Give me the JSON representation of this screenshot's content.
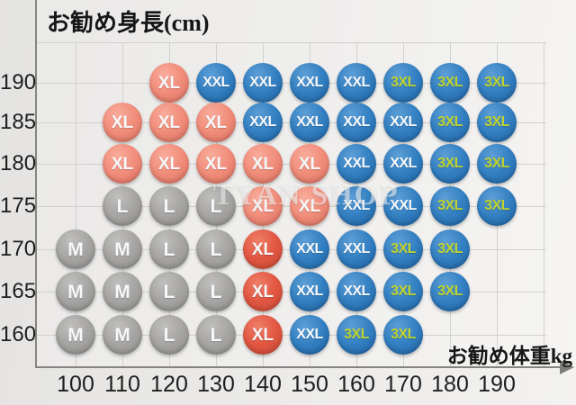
{
  "watermark": "TYAN SHOP",
  "chart_data": {
    "type": "scatter",
    "title": "お勧め身長(cm)",
    "xlabel": "お勧め体重kg",
    "ylabel": "お勧め身長(cm)",
    "x_unit": "kg",
    "y_unit": "cm",
    "x_ticks": [
      100,
      110,
      120,
      130,
      140,
      150,
      160,
      170,
      180,
      190
    ],
    "y_ticks": [
      190,
      185,
      180,
      175,
      170,
      165,
      160
    ],
    "grid": "on",
    "palette": {
      "gray": "#A6A5A3",
      "salmon": "#F18D7B",
      "red": "#E25742",
      "blue": "#3380C2",
      "label_default": "#F6F8FA",
      "label_3xl": "#BFD22F",
      "axis": "#85847F",
      "gridline": "#D2D1CE"
    },
    "rows": [
      {
        "height": 190,
        "points": [
          {
            "w": 120,
            "s": "XL",
            "c": "salmon"
          },
          {
            "w": 130,
            "s": "XXL",
            "c": "blue"
          },
          {
            "w": 140,
            "s": "XXL",
            "c": "blue"
          },
          {
            "w": 150,
            "s": "XXL",
            "c": "blue"
          },
          {
            "w": 160,
            "s": "XXL",
            "c": "blue"
          },
          {
            "w": 170,
            "s": "3XL",
            "c": "blue"
          },
          {
            "w": 180,
            "s": "3XL",
            "c": "blue"
          },
          {
            "w": 190,
            "s": "3XL",
            "c": "blue"
          }
        ]
      },
      {
        "height": 185,
        "points": [
          {
            "w": 110,
            "s": "XL",
            "c": "salmon"
          },
          {
            "w": 120,
            "s": "XL",
            "c": "salmon"
          },
          {
            "w": 130,
            "s": "XL",
            "c": "salmon"
          },
          {
            "w": 140,
            "s": "XXL",
            "c": "blue"
          },
          {
            "w": 150,
            "s": "XXL",
            "c": "blue"
          },
          {
            "w": 160,
            "s": "XXL",
            "c": "blue"
          },
          {
            "w": 170,
            "s": "XXL",
            "c": "blue"
          },
          {
            "w": 180,
            "s": "3XL",
            "c": "blue"
          },
          {
            "w": 190,
            "s": "3XL",
            "c": "blue"
          }
        ]
      },
      {
        "height": 180,
        "points": [
          {
            "w": 110,
            "s": "XL",
            "c": "salmon"
          },
          {
            "w": 120,
            "s": "XL",
            "c": "salmon"
          },
          {
            "w": 130,
            "s": "XL",
            "c": "salmon"
          },
          {
            "w": 140,
            "s": "XL",
            "c": "salmon"
          },
          {
            "w": 150,
            "s": "XL",
            "c": "salmon"
          },
          {
            "w": 160,
            "s": "XXL",
            "c": "blue"
          },
          {
            "w": 170,
            "s": "XXL",
            "c": "blue"
          },
          {
            "w": 180,
            "s": "3XL",
            "c": "blue"
          },
          {
            "w": 190,
            "s": "3XL",
            "c": "blue"
          }
        ]
      },
      {
        "height": 175,
        "points": [
          {
            "w": 110,
            "s": "L",
            "c": "gray"
          },
          {
            "w": 120,
            "s": "L",
            "c": "gray"
          },
          {
            "w": 130,
            "s": "L",
            "c": "gray"
          },
          {
            "w": 140,
            "s": "XL",
            "c": "salmon"
          },
          {
            "w": 150,
            "s": "XL",
            "c": "salmon"
          },
          {
            "w": 160,
            "s": "XXL",
            "c": "blue"
          },
          {
            "w": 170,
            "s": "XXL",
            "c": "blue"
          },
          {
            "w": 180,
            "s": "3XL",
            "c": "blue"
          },
          {
            "w": 190,
            "s": "3XL",
            "c": "blue"
          }
        ]
      },
      {
        "height": 170,
        "points": [
          {
            "w": 100,
            "s": "M",
            "c": "gray"
          },
          {
            "w": 110,
            "s": "M",
            "c": "gray"
          },
          {
            "w": 120,
            "s": "L",
            "c": "gray"
          },
          {
            "w": 130,
            "s": "L",
            "c": "gray"
          },
          {
            "w": 140,
            "s": "XL",
            "c": "red"
          },
          {
            "w": 150,
            "s": "XXL",
            "c": "blue"
          },
          {
            "w": 160,
            "s": "XXL",
            "c": "blue"
          },
          {
            "w": 170,
            "s": "3XL",
            "c": "blue"
          },
          {
            "w": 180,
            "s": "3XL",
            "c": "blue"
          }
        ]
      },
      {
        "height": 165,
        "points": [
          {
            "w": 100,
            "s": "M",
            "c": "gray"
          },
          {
            "w": 110,
            "s": "M",
            "c": "gray"
          },
          {
            "w": 120,
            "s": "L",
            "c": "gray"
          },
          {
            "w": 130,
            "s": "L",
            "c": "gray"
          },
          {
            "w": 140,
            "s": "XL",
            "c": "red"
          },
          {
            "w": 150,
            "s": "XXL",
            "c": "blue"
          },
          {
            "w": 160,
            "s": "XXL",
            "c": "blue"
          },
          {
            "w": 170,
            "s": "3XL",
            "c": "blue"
          },
          {
            "w": 180,
            "s": "3XL",
            "c": "blue"
          }
        ]
      },
      {
        "height": 160,
        "points": [
          {
            "w": 100,
            "s": "M",
            "c": "gray"
          },
          {
            "w": 110,
            "s": "M",
            "c": "gray"
          },
          {
            "w": 120,
            "s": "L",
            "c": "gray"
          },
          {
            "w": 130,
            "s": "L",
            "c": "gray"
          },
          {
            "w": 140,
            "s": "XL",
            "c": "red"
          },
          {
            "w": 150,
            "s": "XXL",
            "c": "blue"
          },
          {
            "w": 160,
            "s": "3XL",
            "c": "blue"
          },
          {
            "w": 170,
            "s": "3XL",
            "c": "blue"
          }
        ]
      }
    ]
  }
}
